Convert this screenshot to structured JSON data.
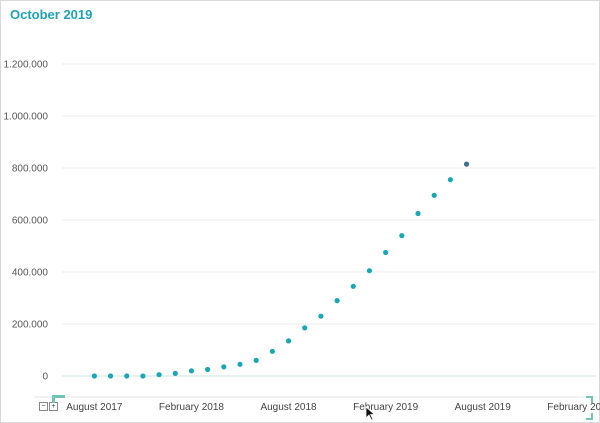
{
  "title": "October 2019",
  "colors": {
    "accent": "#1ea3b6",
    "point": "#17a8b8",
    "highlight": "#3d6f8e",
    "grid": "#ececec"
  },
  "chart_data": {
    "type": "scatter",
    "title": "October 2019",
    "xlabel": "",
    "ylabel": "",
    "ylim": [
      0,
      1200000
    ],
    "y_ticks": [
      {
        "value": 0,
        "label": "0"
      },
      {
        "value": 200000,
        "label": "200.000"
      },
      {
        "value": 400000,
        "label": "400.000"
      },
      {
        "value": 600000,
        "label": "600.000"
      },
      {
        "value": 800000,
        "label": "800.000"
      },
      {
        "value": 1000000,
        "label": "1.000.000"
      },
      {
        "value": 1200000,
        "label": "1.200.000"
      }
    ],
    "x_range": [
      "2017-06",
      "2020-03"
    ],
    "x_ticks": [
      {
        "value": "2017-08",
        "label": "August 2017"
      },
      {
        "value": "2018-02",
        "label": "February 2018"
      },
      {
        "value": "2018-08",
        "label": "August 2018"
      },
      {
        "value": "2019-02",
        "label": "February 2019"
      },
      {
        "value": "2019-08",
        "label": "August 2019"
      },
      {
        "value": "2020-02",
        "label": "February 2020"
      }
    ],
    "grid": true,
    "points": [
      {
        "x": "2017-08",
        "y": 0
      },
      {
        "x": "2017-09",
        "y": 0
      },
      {
        "x": "2017-10",
        "y": 0
      },
      {
        "x": "2017-11",
        "y": 0
      },
      {
        "x": "2017-12",
        "y": 5000
      },
      {
        "x": "2018-01",
        "y": 10000
      },
      {
        "x": "2018-02",
        "y": 20000
      },
      {
        "x": "2018-03",
        "y": 25000
      },
      {
        "x": "2018-04",
        "y": 35000
      },
      {
        "x": "2018-05",
        "y": 45000
      },
      {
        "x": "2018-06",
        "y": 60000
      },
      {
        "x": "2018-07",
        "y": 95000
      },
      {
        "x": "2018-08",
        "y": 135000
      },
      {
        "x": "2018-09",
        "y": 185000
      },
      {
        "x": "2018-10",
        "y": 230000
      },
      {
        "x": "2018-11",
        "y": 290000
      },
      {
        "x": "2018-12",
        "y": 345000
      },
      {
        "x": "2019-01",
        "y": 405000
      },
      {
        "x": "2019-02",
        "y": 475000
      },
      {
        "x": "2019-03",
        "y": 540000
      },
      {
        "x": "2019-04",
        "y": 625000
      },
      {
        "x": "2019-05",
        "y": 695000
      },
      {
        "x": "2019-06",
        "y": 755000
      },
      {
        "x": "2019-07",
        "y": 815000,
        "highlight": true
      }
    ]
  }
}
